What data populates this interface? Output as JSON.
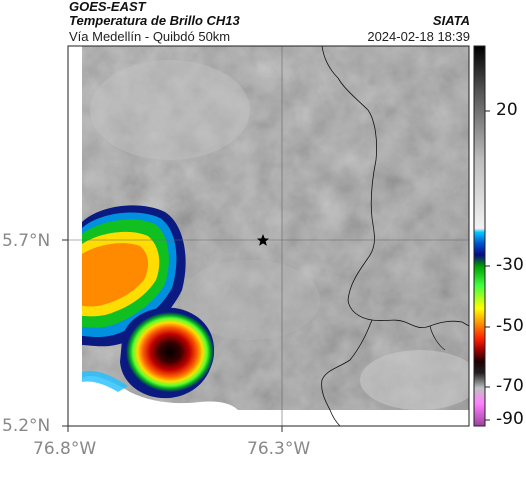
{
  "header": {
    "satellite": "GOES-EAST",
    "product": "Temperatura de Brillo CH13",
    "region": "Vía Medellín - Quibdó 50km",
    "organization": "SIATA",
    "datetime": "2024-02-18 18:39"
  },
  "map": {
    "lat_labels": [
      "5.7°N",
      "5.2°N"
    ],
    "lon_labels": [
      "76.8°W",
      "76.3°W"
    ],
    "marker": "star-icon"
  },
  "colorbar": {
    "tick_labels": [
      "20",
      "-30",
      "-50",
      "-70",
      "-90"
    ]
  }
}
